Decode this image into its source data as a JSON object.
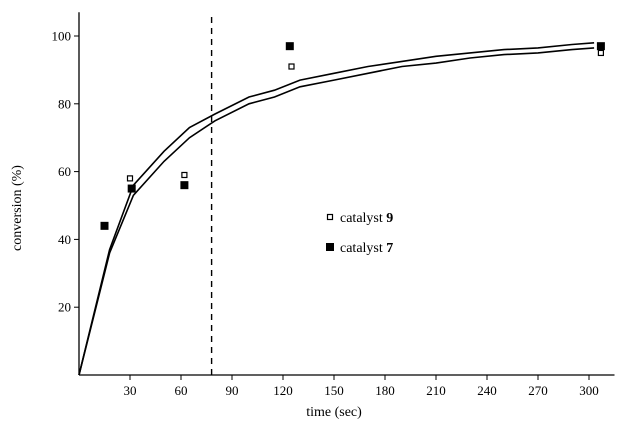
{
  "chart_data": {
    "type": "scatter",
    "xlabel": "time (sec)",
    "ylabel": "conversion (%)",
    "xlim": [
      0,
      315
    ],
    "ylim": [
      0,
      107
    ],
    "xticks": [
      30,
      60,
      90,
      120,
      150,
      180,
      210,
      240,
      270,
      300
    ],
    "yticks": [
      20,
      40,
      60,
      80,
      100
    ],
    "grid": false,
    "legend_position": "center-right",
    "cutoff_line_x": 78,
    "series": [
      {
        "name": "catalyst 9",
        "marker": "open-square",
        "x": [
          30,
          62,
          125,
          307
        ],
        "y": [
          58,
          59,
          91,
          95
        ]
      },
      {
        "name": "catalyst 7",
        "marker": "filled-square",
        "x": [
          15,
          31,
          62,
          124,
          307
        ],
        "y": [
          44,
          55,
          56,
          97,
          97
        ]
      }
    ],
    "fit_curves": [
      {
        "x": [
          0,
          18,
          32,
          50,
          65,
          80,
          100,
          115,
          130,
          150,
          170,
          190,
          210,
          230,
          250,
          270,
          290,
          303
        ],
        "y": [
          0,
          37,
          56,
          66,
          73,
          77,
          82,
          84,
          87,
          89,
          91,
          92.5,
          94,
          95,
          96,
          96.5,
          97.5,
          98
        ]
      },
      {
        "x": [
          0,
          18,
          32,
          50,
          65,
          80,
          100,
          115,
          130,
          150,
          170,
          190,
          210,
          230,
          250,
          270,
          290,
          303
        ],
        "y": [
          0,
          36,
          53,
          63,
          70,
          75,
          80,
          82,
          85,
          87,
          89,
          91,
          92,
          93.5,
          94.5,
          95,
          96,
          96.5
        ]
      }
    ]
  }
}
